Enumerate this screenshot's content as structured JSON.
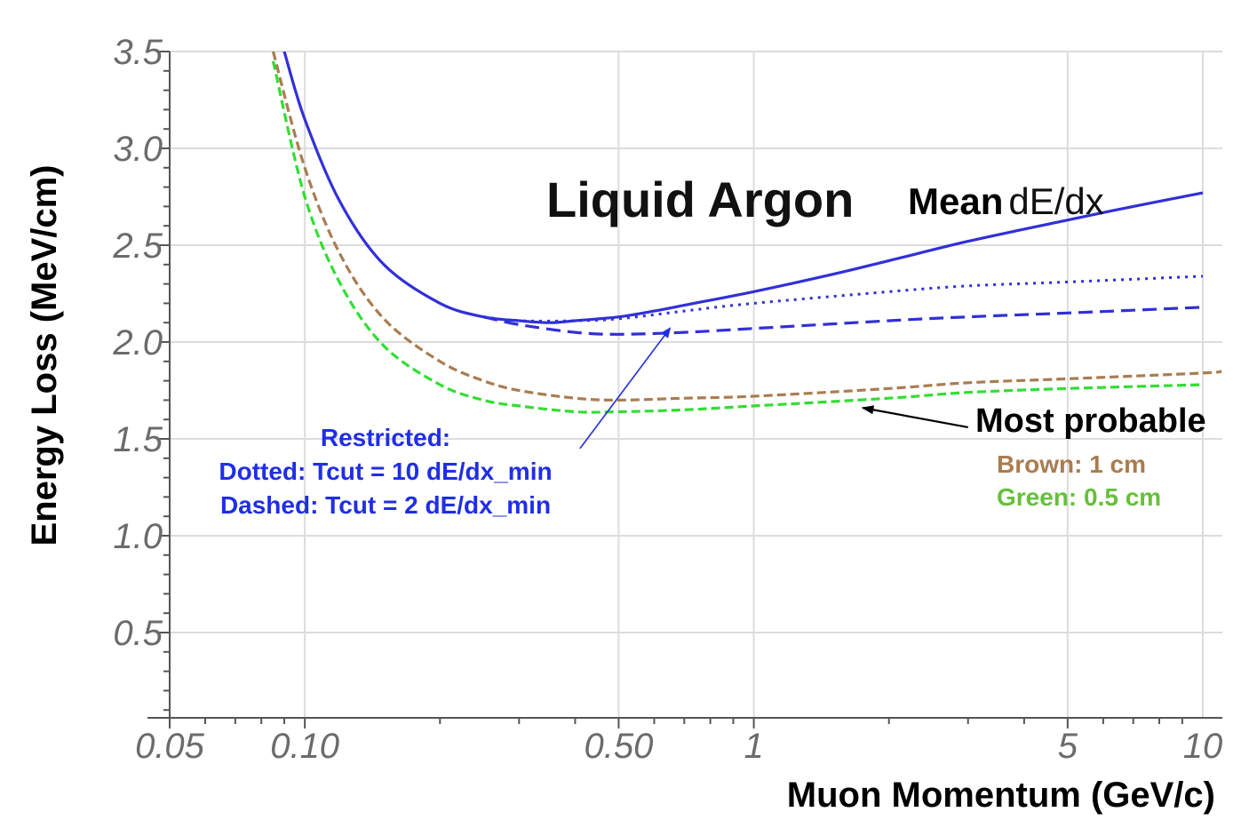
{
  "chart_data": {
    "type": "line",
    "title": "Liquid Argon",
    "xlabel": "Muon Momentum (GeV/c)",
    "ylabel": "Energy Loss (MeV/cm)",
    "x_scale": "log",
    "xlim": [
      0.05,
      10.5
    ],
    "ylim": [
      0.1,
      3.5
    ],
    "x_ticks": [
      {
        "value": 0.05,
        "label": "0.05"
      },
      {
        "value": 0.1,
        "label": "0.10"
      },
      {
        "value": 0.5,
        "label": "0.50"
      },
      {
        "value": 1,
        "label": "1"
      },
      {
        "value": 5,
        "label": "5"
      },
      {
        "value": 10,
        "label": "10"
      }
    ],
    "y_ticks": [
      {
        "value": 0.5,
        "label": "0.5"
      },
      {
        "value": 1.0,
        "label": "1.0"
      },
      {
        "value": 1.5,
        "label": "1.5"
      },
      {
        "value": 2.0,
        "label": "2.0"
      },
      {
        "value": 2.5,
        "label": "2.5"
      },
      {
        "value": 3.0,
        "label": "3.0"
      },
      {
        "value": 3.5,
        "label": "3.5"
      }
    ],
    "grid": true,
    "series": [
      {
        "key": "mean",
        "style": "solid",
        "color": "#3030d8",
        "x": [
          0.09,
          0.1,
          0.12,
          0.15,
          0.2,
          0.25,
          0.3,
          0.35,
          0.4,
          0.5,
          0.6,
          0.7,
          1.0,
          1.5,
          2.0,
          3.0,
          5.0,
          7.0,
          10.0
        ],
        "y": [
          3.5,
          3.15,
          2.72,
          2.4,
          2.2,
          2.13,
          2.11,
          2.1,
          2.11,
          2.13,
          2.16,
          2.19,
          2.26,
          2.35,
          2.42,
          2.52,
          2.63,
          2.7,
          2.77
        ]
      },
      {
        "key": "dotted",
        "style": "dotted",
        "color": "#3030d8",
        "x": [
          0.25,
          0.3,
          0.4,
          0.5,
          0.7,
          1.0,
          2.0,
          3.0,
          5.0,
          10.0
        ],
        "y": [
          2.13,
          2.11,
          2.11,
          2.12,
          2.16,
          2.2,
          2.26,
          2.29,
          2.31,
          2.34
        ]
      },
      {
        "key": "dashed",
        "style": "dashed",
        "color": "#3030d8",
        "x": [
          0.25,
          0.3,
          0.4,
          0.5,
          0.7,
          1.0,
          2.0,
          3.0,
          5.0,
          10.0
        ],
        "y": [
          2.13,
          2.09,
          2.05,
          2.04,
          2.05,
          2.07,
          2.11,
          2.13,
          2.15,
          2.18
        ]
      },
      {
        "key": "brown",
        "style": "dashed",
        "color": "#a97c50",
        "x": [
          0.085,
          0.1,
          0.12,
          0.15,
          0.2,
          0.25,
          0.3,
          0.4,
          0.5,
          0.7,
          1.0,
          2.0,
          3.0,
          5.0,
          10.0,
          11.0
        ],
        "y": [
          3.5,
          2.9,
          2.45,
          2.12,
          1.9,
          1.8,
          1.75,
          1.71,
          1.7,
          1.71,
          1.72,
          1.76,
          1.79,
          1.81,
          1.84,
          1.85
        ]
      },
      {
        "key": "green",
        "style": "dashed",
        "color": "#33dd33",
        "x": [
          0.085,
          0.1,
          0.12,
          0.15,
          0.2,
          0.25,
          0.3,
          0.4,
          0.5,
          0.7,
          1.0,
          2.0,
          3.0,
          5.0,
          10.0
        ],
        "y": [
          3.45,
          2.75,
          2.3,
          1.98,
          1.78,
          1.7,
          1.67,
          1.64,
          1.64,
          1.65,
          1.67,
          1.71,
          1.74,
          1.76,
          1.78
        ]
      }
    ],
    "annotations": {
      "mean_word": "Mean",
      "mean_rest": "dE/dx",
      "restricted": "Restricted:",
      "dotted": "Dotted: Tcut = 10 dE/dx_min",
      "dashed": "Dashed: Tcut = 2 dE/dx_min",
      "most_probable": "Most probable",
      "brown": "Brown: 1 cm",
      "green": "Green:  0.5 cm"
    },
    "arrows": [
      {
        "key": "restricted",
        "color": "#1f2ee6",
        "from": [
          0.41,
          1.45
        ],
        "to": [
          0.65,
          2.07
        ]
      },
      {
        "key": "most_probable",
        "color": "#000000",
        "from": [
          3.0,
          1.56
        ],
        "to": [
          1.75,
          1.66
        ]
      }
    ]
  }
}
